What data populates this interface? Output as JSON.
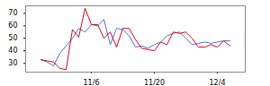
{
  "chart_data": {
    "type": "line",
    "categories": [
      null,
      null,
      null,
      null,
      null,
      null,
      null,
      null,
      "11/6",
      null,
      null,
      null,
      null,
      null,
      null,
      null,
      null,
      null,
      "11/20",
      null,
      null,
      null,
      null,
      null,
      null,
      null,
      null,
      null,
      "12/4",
      null,
      null
    ],
    "series": [
      {
        "color": "#e60012",
        "values": [
          33,
          32,
          31,
          26,
          25,
          57,
          51,
          74,
          61,
          61,
          50,
          55,
          43,
          58,
          58,
          49,
          42,
          41,
          40,
          47,
          45,
          55,
          54,
          55,
          50,
          43,
          43,
          45,
          43,
          48,
          44
        ]
      },
      {
        "color": "#4a6fd0",
        "values": [
          33,
          31,
          28,
          38,
          44,
          50,
          58,
          55,
          61,
          60,
          65,
          45,
          58,
          57,
          52,
          43,
          44,
          42,
          45,
          47,
          52,
          54,
          55,
          50,
          45,
          46,
          47,
          46,
          47,
          48,
          48
        ]
      }
    ],
    "ylim": [
      23,
      76
    ],
    "yticks": [
      30,
      40,
      50,
      60,
      70
    ],
    "grid": false
  }
}
